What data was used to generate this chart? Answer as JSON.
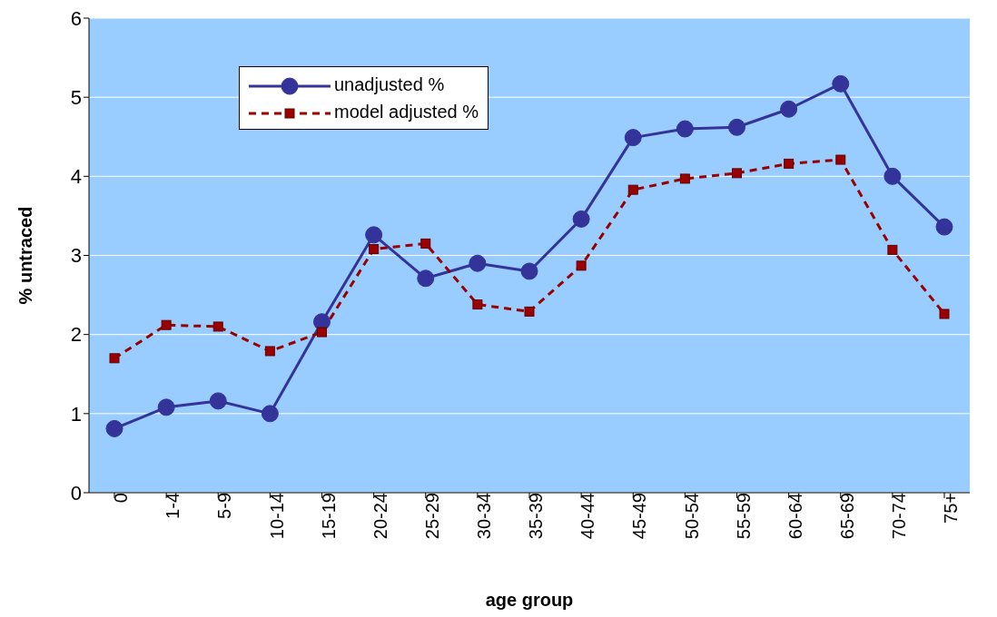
{
  "chart_data": {
    "type": "line",
    "xlabel": "age group",
    "ylabel": "% untraced",
    "categories": [
      "0",
      "1-4",
      "5-9",
      "10-14",
      "15-19",
      "20-24",
      "25-29",
      "30-34",
      "35-39",
      "40-44",
      "45-49",
      "50-54",
      "55-59",
      "60-64",
      "65-69",
      "70-74",
      "75+"
    ],
    "series": [
      {
        "name": "unadjusted %",
        "color": "#333399",
        "marker": "circle",
        "line_style": "solid",
        "values": [
          0.81,
          1.08,
          1.16,
          1.0,
          2.16,
          3.26,
          2.71,
          2.9,
          2.8,
          3.46,
          4.49,
          4.6,
          4.62,
          4.85,
          5.17,
          4.0,
          3.36
        ]
      },
      {
        "name": "model adjusted %",
        "color": "#990000",
        "marker": "square",
        "line_style": "dashed",
        "values": [
          1.7,
          2.12,
          2.1,
          1.79,
          2.03,
          3.08,
          3.15,
          2.38,
          2.29,
          2.87,
          3.83,
          3.97,
          4.04,
          4.16,
          4.21,
          3.07,
          2.26
        ]
      }
    ],
    "ylim": [
      0,
      6
    ],
    "yticks": [
      0,
      1,
      2,
      3,
      4,
      5,
      6
    ],
    "grid": "y",
    "legend": "top left"
  }
}
